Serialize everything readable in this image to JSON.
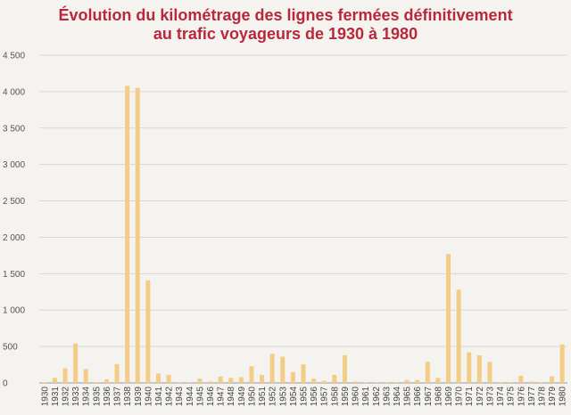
{
  "chart_data": {
    "type": "bar",
    "title_line1": "Évolution du kilométrage des lignes fermées définitivement",
    "title_line2": "au trafic voyageurs de 1930 à 1980",
    "xlabel": "",
    "ylabel": "",
    "ylim": [
      0,
      4500
    ],
    "yticks": [
      0,
      500,
      1000,
      1500,
      2000,
      2500,
      3000,
      3500,
      4000,
      4500
    ],
    "ytick_labels": [
      "0",
      "500",
      "1 000",
      "1 500",
      "2 000",
      "2 500",
      "3 000",
      "3 500",
      "4 000",
      "4 500"
    ],
    "grid": true,
    "colors": {
      "bar": "#f3cd86",
      "title": "#b8283a",
      "grid": "#d9d5ce"
    },
    "categories": [
      "1930",
      "1931",
      "1932",
      "1933",
      "1934",
      "1935",
      "1936",
      "1937",
      "1938",
      "1939",
      "1940",
      "1941",
      "1942",
      "1943",
      "1944",
      "1945",
      "1946",
      "1947",
      "1948",
      "1949",
      "1950",
      "1951",
      "1952",
      "1953",
      "1954",
      "1955",
      "1956",
      "1957",
      "1958",
      "1959",
      "1960",
      "1961",
      "1962",
      "1963",
      "1964",
      "1965",
      "1966",
      "1967",
      "1968",
      "1969",
      "1970",
      "1971",
      "1972",
      "1973",
      "1974",
      "1975",
      "1976",
      "1977",
      "1978",
      "1979",
      "1980"
    ],
    "values": [
      0,
      70,
      200,
      540,
      190,
      10,
      50,
      260,
      4080,
      4050,
      1410,
      130,
      110,
      5,
      10,
      60,
      20,
      90,
      70,
      80,
      230,
      110,
      400,
      360,
      150,
      255,
      60,
      30,
      110,
      380,
      20,
      5,
      5,
      5,
      5,
      40,
      40,
      290,
      70,
      1770,
      1280,
      420,
      380,
      290,
      5,
      5,
      100,
      20,
      5,
      90,
      530
    ]
  }
}
